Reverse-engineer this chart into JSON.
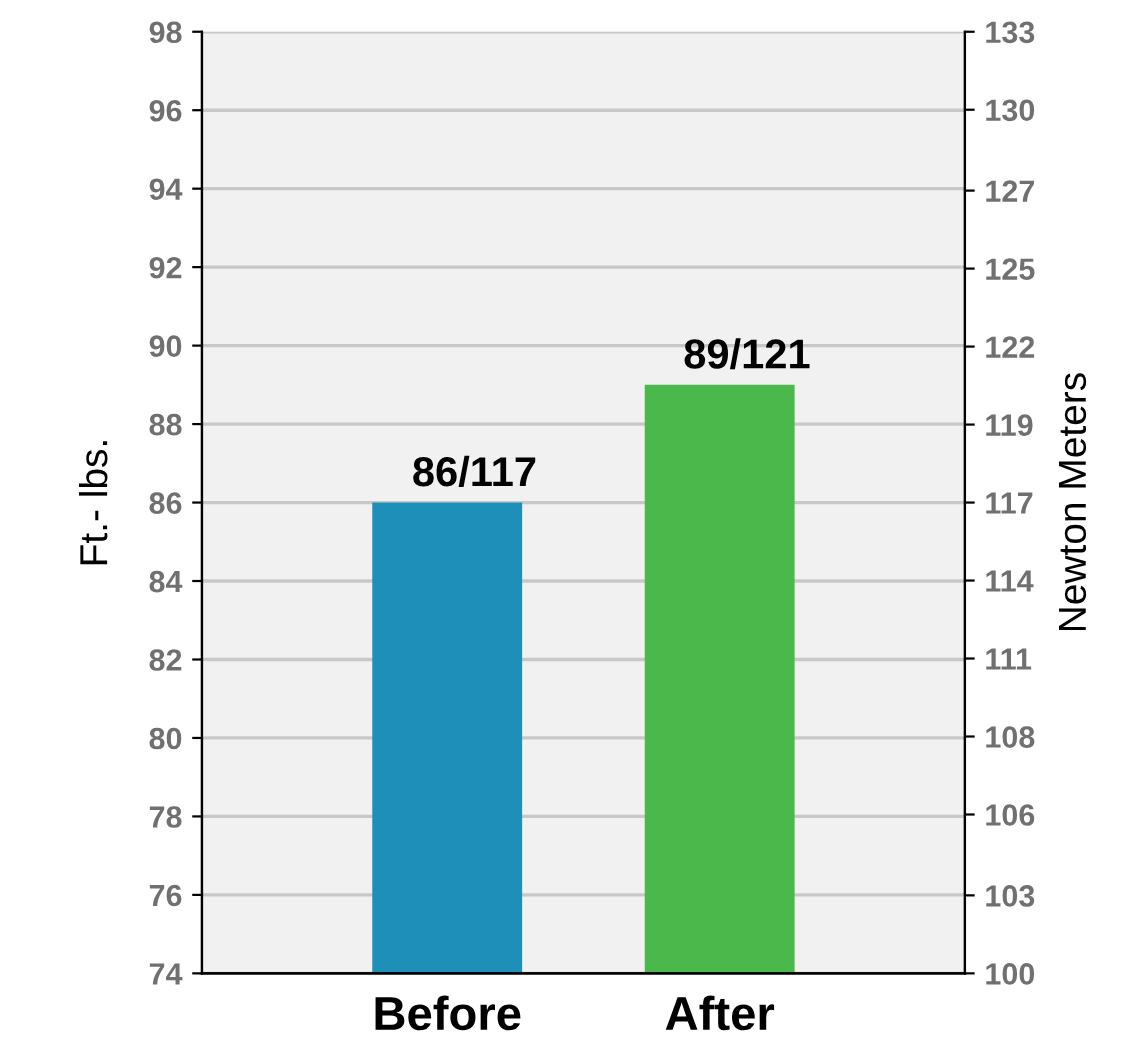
{
  "chart_data": {
    "type": "bar",
    "categories": [
      "Before",
      "After"
    ],
    "values": [
      86,
      89
    ],
    "colors": [
      "#1e8fb8",
      "#4ab84a"
    ],
    "value_labels": [
      "86/117",
      "89/121"
    ],
    "ylabel": "Ft.- lbs.",
    "y2label": "Newton Meters",
    "ylim": [
      74,
      98
    ],
    "yticks": [
      74,
      76,
      78,
      80,
      82,
      84,
      86,
      88,
      90,
      92,
      94,
      96,
      98
    ],
    "y2lim": [
      100.3,
      132.9
    ],
    "y2ticks": [
      {
        "value": 100.3,
        "label": "100"
      },
      {
        "value": 103.0,
        "label": "103"
      },
      {
        "value": 105.8,
        "label": "106"
      },
      {
        "value": 108.5,
        "label": "108"
      },
      {
        "value": 111.2,
        "label": "111"
      },
      {
        "value": 113.9,
        "label": "114"
      },
      {
        "value": 116.6,
        "label": "117"
      },
      {
        "value": 119.3,
        "label": "119"
      },
      {
        "value": 122.0,
        "label": "122"
      },
      {
        "value": 124.7,
        "label": "125"
      },
      {
        "value": 127.4,
        "label": "127"
      },
      {
        "value": 130.2,
        "label": "130"
      },
      {
        "value": 132.9,
        "label": "133"
      }
    ],
    "grid": "y"
  }
}
